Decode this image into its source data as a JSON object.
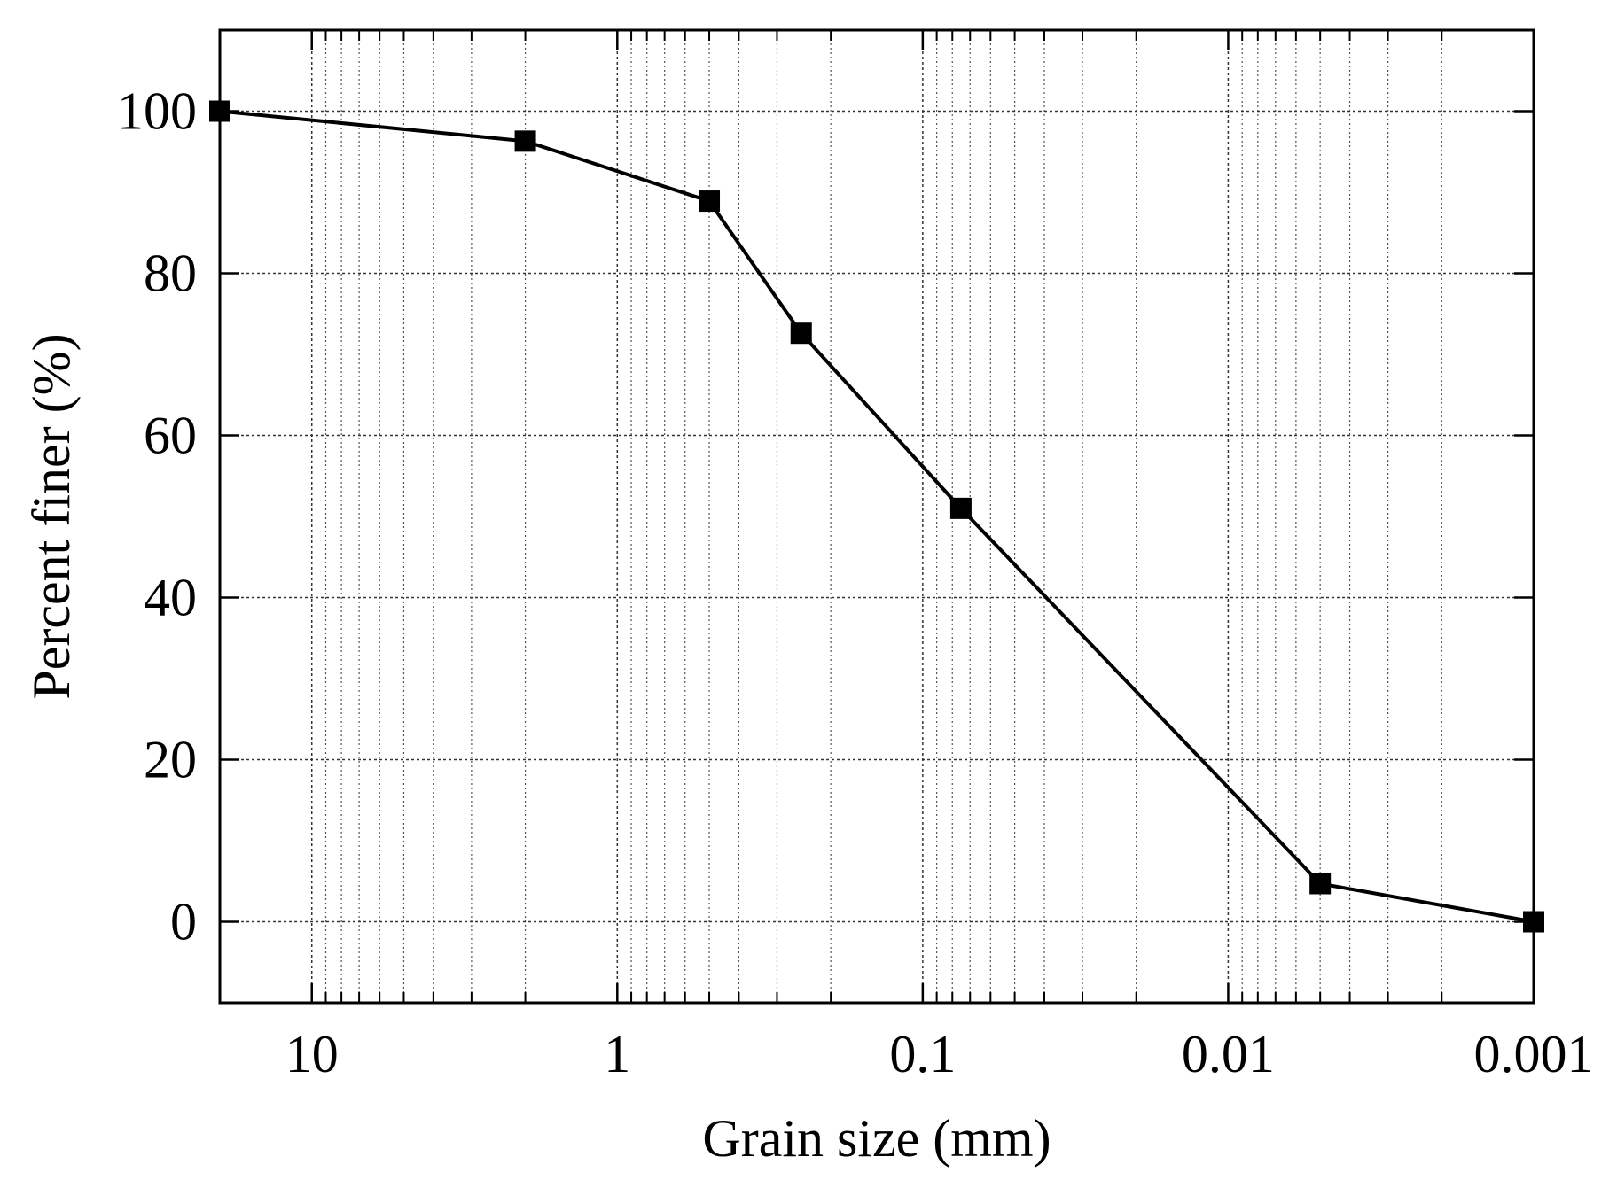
{
  "chart_data": {
    "type": "line",
    "title": "",
    "xlabel": "Grain size (mm)",
    "ylabel": "Percent finer (%)",
    "x_scale": "log",
    "x_reversed": true,
    "xlim": [
      20,
      0.001
    ],
    "ylim": [
      -10,
      110
    ],
    "grid": true,
    "legend": "none",
    "x_ticks": [
      {
        "value": 10,
        "label": "10"
      },
      {
        "value": 1,
        "label": "1"
      },
      {
        "value": 0.1,
        "label": "0.1"
      },
      {
        "value": 0.01,
        "label": "0.01"
      },
      {
        "value": 0.001,
        "label": "0.001"
      }
    ],
    "y_ticks": [
      {
        "value": 0,
        "label": "0"
      },
      {
        "value": 20,
        "label": "20"
      },
      {
        "value": 40,
        "label": "40"
      },
      {
        "value": 60,
        "label": "60"
      },
      {
        "value": 80,
        "label": "80"
      },
      {
        "value": 100,
        "label": "100"
      }
    ],
    "series": [
      {
        "color": "#000000",
        "marker": "square",
        "points": [
          {
            "x": 20,
            "y": 100
          },
          {
            "x": 2,
            "y": 96.3
          },
          {
            "x": 0.5,
            "y": 88.9
          },
          {
            "x": 0.25,
            "y": 72.6
          },
          {
            "x": 0.075,
            "y": 51
          },
          {
            "x": 0.005,
            "y": 4.7
          },
          {
            "x": 0.001,
            "y": 0
          }
        ]
      }
    ]
  }
}
